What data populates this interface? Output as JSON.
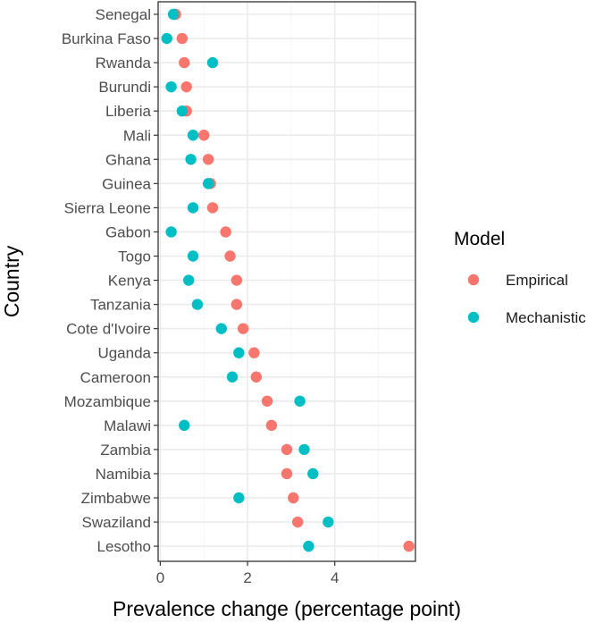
{
  "chart_data": {
    "type": "scatter",
    "xlabel": "Prevalence change (percentage point)",
    "ylabel": "Country",
    "xlim": [
      -0.05,
      5.85
    ],
    "xticks": [
      0,
      2,
      4
    ],
    "grid": true,
    "legend": {
      "title": "Model",
      "position": "right"
    },
    "categories": [
      "Senegal",
      "Burkina Faso",
      "Rwanda",
      "Burundi",
      "Liberia",
      "Mali",
      "Ghana",
      "Guinea",
      "Sierra Leone",
      "Gabon",
      "Togo",
      "Kenya",
      "Tanzania",
      "Cote d'Ivoire",
      "Uganda",
      "Cameroon",
      "Mozambique",
      "Malawi",
      "Zambia",
      "Namibia",
      "Zimbabwe",
      "Swaziland",
      "Lesotho"
    ],
    "series": [
      {
        "name": "Empirical",
        "color": "#F8766D",
        "values": [
          0.35,
          0.5,
          0.55,
          0.6,
          0.6,
          1.0,
          1.1,
          1.15,
          1.2,
          1.5,
          1.6,
          1.75,
          1.75,
          1.9,
          2.15,
          2.2,
          2.45,
          2.55,
          2.9,
          2.9,
          3.05,
          3.15,
          5.7
        ]
      },
      {
        "name": "Mechanistic",
        "color": "#00BFC4",
        "values": [
          0.3,
          0.15,
          1.2,
          0.25,
          0.5,
          0.75,
          0.7,
          1.1,
          0.75,
          0.25,
          0.75,
          0.65,
          0.85,
          1.4,
          1.8,
          1.65,
          3.2,
          0.55,
          3.3,
          3.5,
          1.8,
          3.85,
          3.4
        ]
      }
    ]
  }
}
